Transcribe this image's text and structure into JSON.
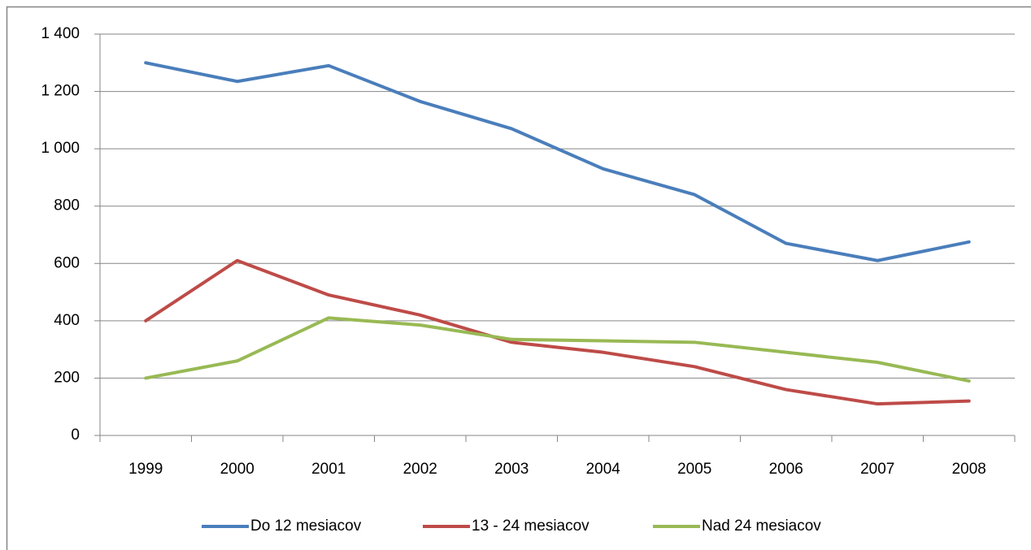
{
  "chart_data": {
    "type": "line",
    "categories": [
      "1999",
      "2000",
      "2001",
      "2002",
      "2003",
      "2004",
      "2005",
      "2006",
      "2007",
      "2008"
    ],
    "series": [
      {
        "name": "Do 12 mesiacov",
        "color": "#4a7ebb",
        "values": [
          1300,
          1235,
          1290,
          1165,
          1070,
          930,
          840,
          670,
          610,
          675
        ]
      },
      {
        "name": "13 - 24 mesiacov",
        "color": "#be4b48",
        "values": [
          400,
          610,
          490,
          420,
          325,
          290,
          240,
          160,
          110,
          120
        ]
      },
      {
        "name": "Nad 24 mesiacov",
        "color": "#98b954",
        "values": [
          200,
          260,
          410,
          385,
          335,
          330,
          325,
          290,
          255,
          190
        ]
      }
    ],
    "ylim": [
      0,
      1400
    ],
    "yticks": [
      0,
      200,
      400,
      600,
      800,
      {
        "value": 1000,
        "label": "1 000"
      },
      {
        "value": 1200,
        "label": "1 200"
      },
      {
        "value": 1400,
        "label": "1 400"
      }
    ],
    "grid": true,
    "legend": "bottom"
  }
}
